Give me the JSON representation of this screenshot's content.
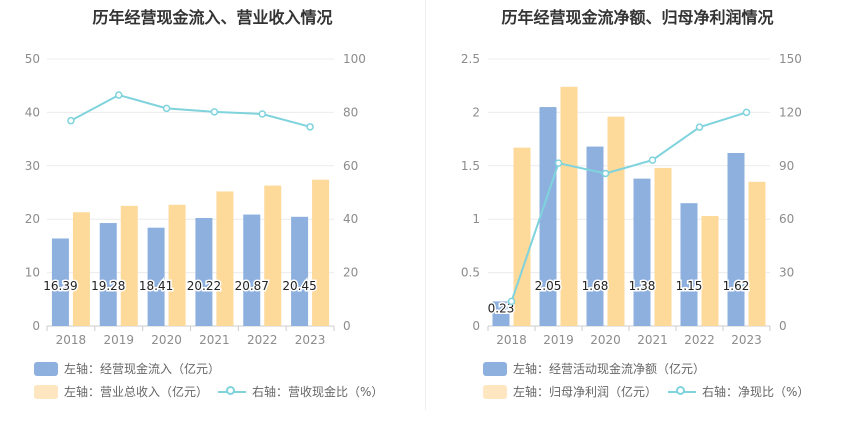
{
  "colors": {
    "bar1": "#8eb0df",
    "bar2": "#fdd99a",
    "line": "#7fd3dd"
  },
  "chart_data": [
    {
      "type": "bar",
      "title": "历年经营现金流入、营业收入情况",
      "categories": [
        "2018",
        "2019",
        "2020",
        "2021",
        "2022",
        "2023"
      ],
      "left_axis": {
        "ticks": [
          "0",
          "10",
          "20",
          "30",
          "40",
          "50"
        ],
        "ylim": [
          0,
          50
        ]
      },
      "right_axis": {
        "ticks": [
          "0",
          "20",
          "40",
          "60",
          "80",
          "100"
        ],
        "ylim": [
          0,
          100
        ]
      },
      "series": [
        {
          "name": "左轴：经营现金流入（亿元）",
          "axis": "left",
          "kind": "bar",
          "values": [
            16.39,
            19.28,
            18.41,
            20.22,
            20.87,
            20.45
          ],
          "labels": [
            "16.39",
            "19.28",
            "18.41",
            "20.22",
            "20.87",
            "20.45"
          ]
        },
        {
          "name": "左轴：营业总收入（亿元）",
          "axis": "left",
          "kind": "bar",
          "values": [
            21.3,
            22.5,
            22.7,
            25.2,
            26.3,
            27.4
          ]
        },
        {
          "name": "右轴：营收现金比（%）",
          "axis": "right",
          "kind": "line",
          "values": [
            76.9,
            86.5,
            81.5,
            80.2,
            79.4,
            74.6
          ]
        }
      ],
      "legend": [
        {
          "label": "左轴：经营现金流入（亿元）",
          "kind": "bar1"
        },
        {
          "label": "左轴：营业总收入（亿元）",
          "kind": "bar2"
        },
        {
          "label": "右轴：营收现金比（%）",
          "kind": "line"
        }
      ]
    },
    {
      "type": "bar",
      "title": "历年经营现金流净额、归母净利润情况",
      "categories": [
        "2018",
        "2019",
        "2020",
        "2021",
        "2022",
        "2023"
      ],
      "left_axis": {
        "ticks": [
          "0",
          "0.5",
          "1",
          "1.5",
          "2",
          "2.5"
        ],
        "ylim": [
          0,
          2.5
        ]
      },
      "right_axis": {
        "ticks": [
          "0",
          "30",
          "60",
          "90",
          "120",
          "150"
        ],
        "ylim": [
          0,
          150
        ]
      },
      "series": [
        {
          "name": "左轴：经营活动现金流净额（亿元）",
          "axis": "left",
          "kind": "bar",
          "values": [
            0.23,
            2.05,
            1.68,
            1.38,
            1.15,
            1.62
          ],
          "labels": [
            "0.23",
            "2.05",
            "1.68",
            "1.38",
            "1.15",
            "1.62"
          ]
        },
        {
          "name": "左轴：归母净利润（亿元）",
          "axis": "left",
          "kind": "bar",
          "values": [
            1.67,
            2.24,
            1.96,
            1.48,
            1.03,
            1.35
          ]
        },
        {
          "name": "右轴：净现比（%）",
          "axis": "right",
          "kind": "line",
          "values": [
            13.8,
            91.5,
            85.7,
            93.2,
            111.7,
            120.0
          ]
        }
      ],
      "legend": [
        {
          "label": "左轴：经营活动现金流净额（亿元）",
          "kind": "bar1"
        },
        {
          "label": "左轴：归母净利润（亿元）",
          "kind": "bar2"
        },
        {
          "label": "右轴：净现比（%）",
          "kind": "line"
        }
      ]
    }
  ]
}
